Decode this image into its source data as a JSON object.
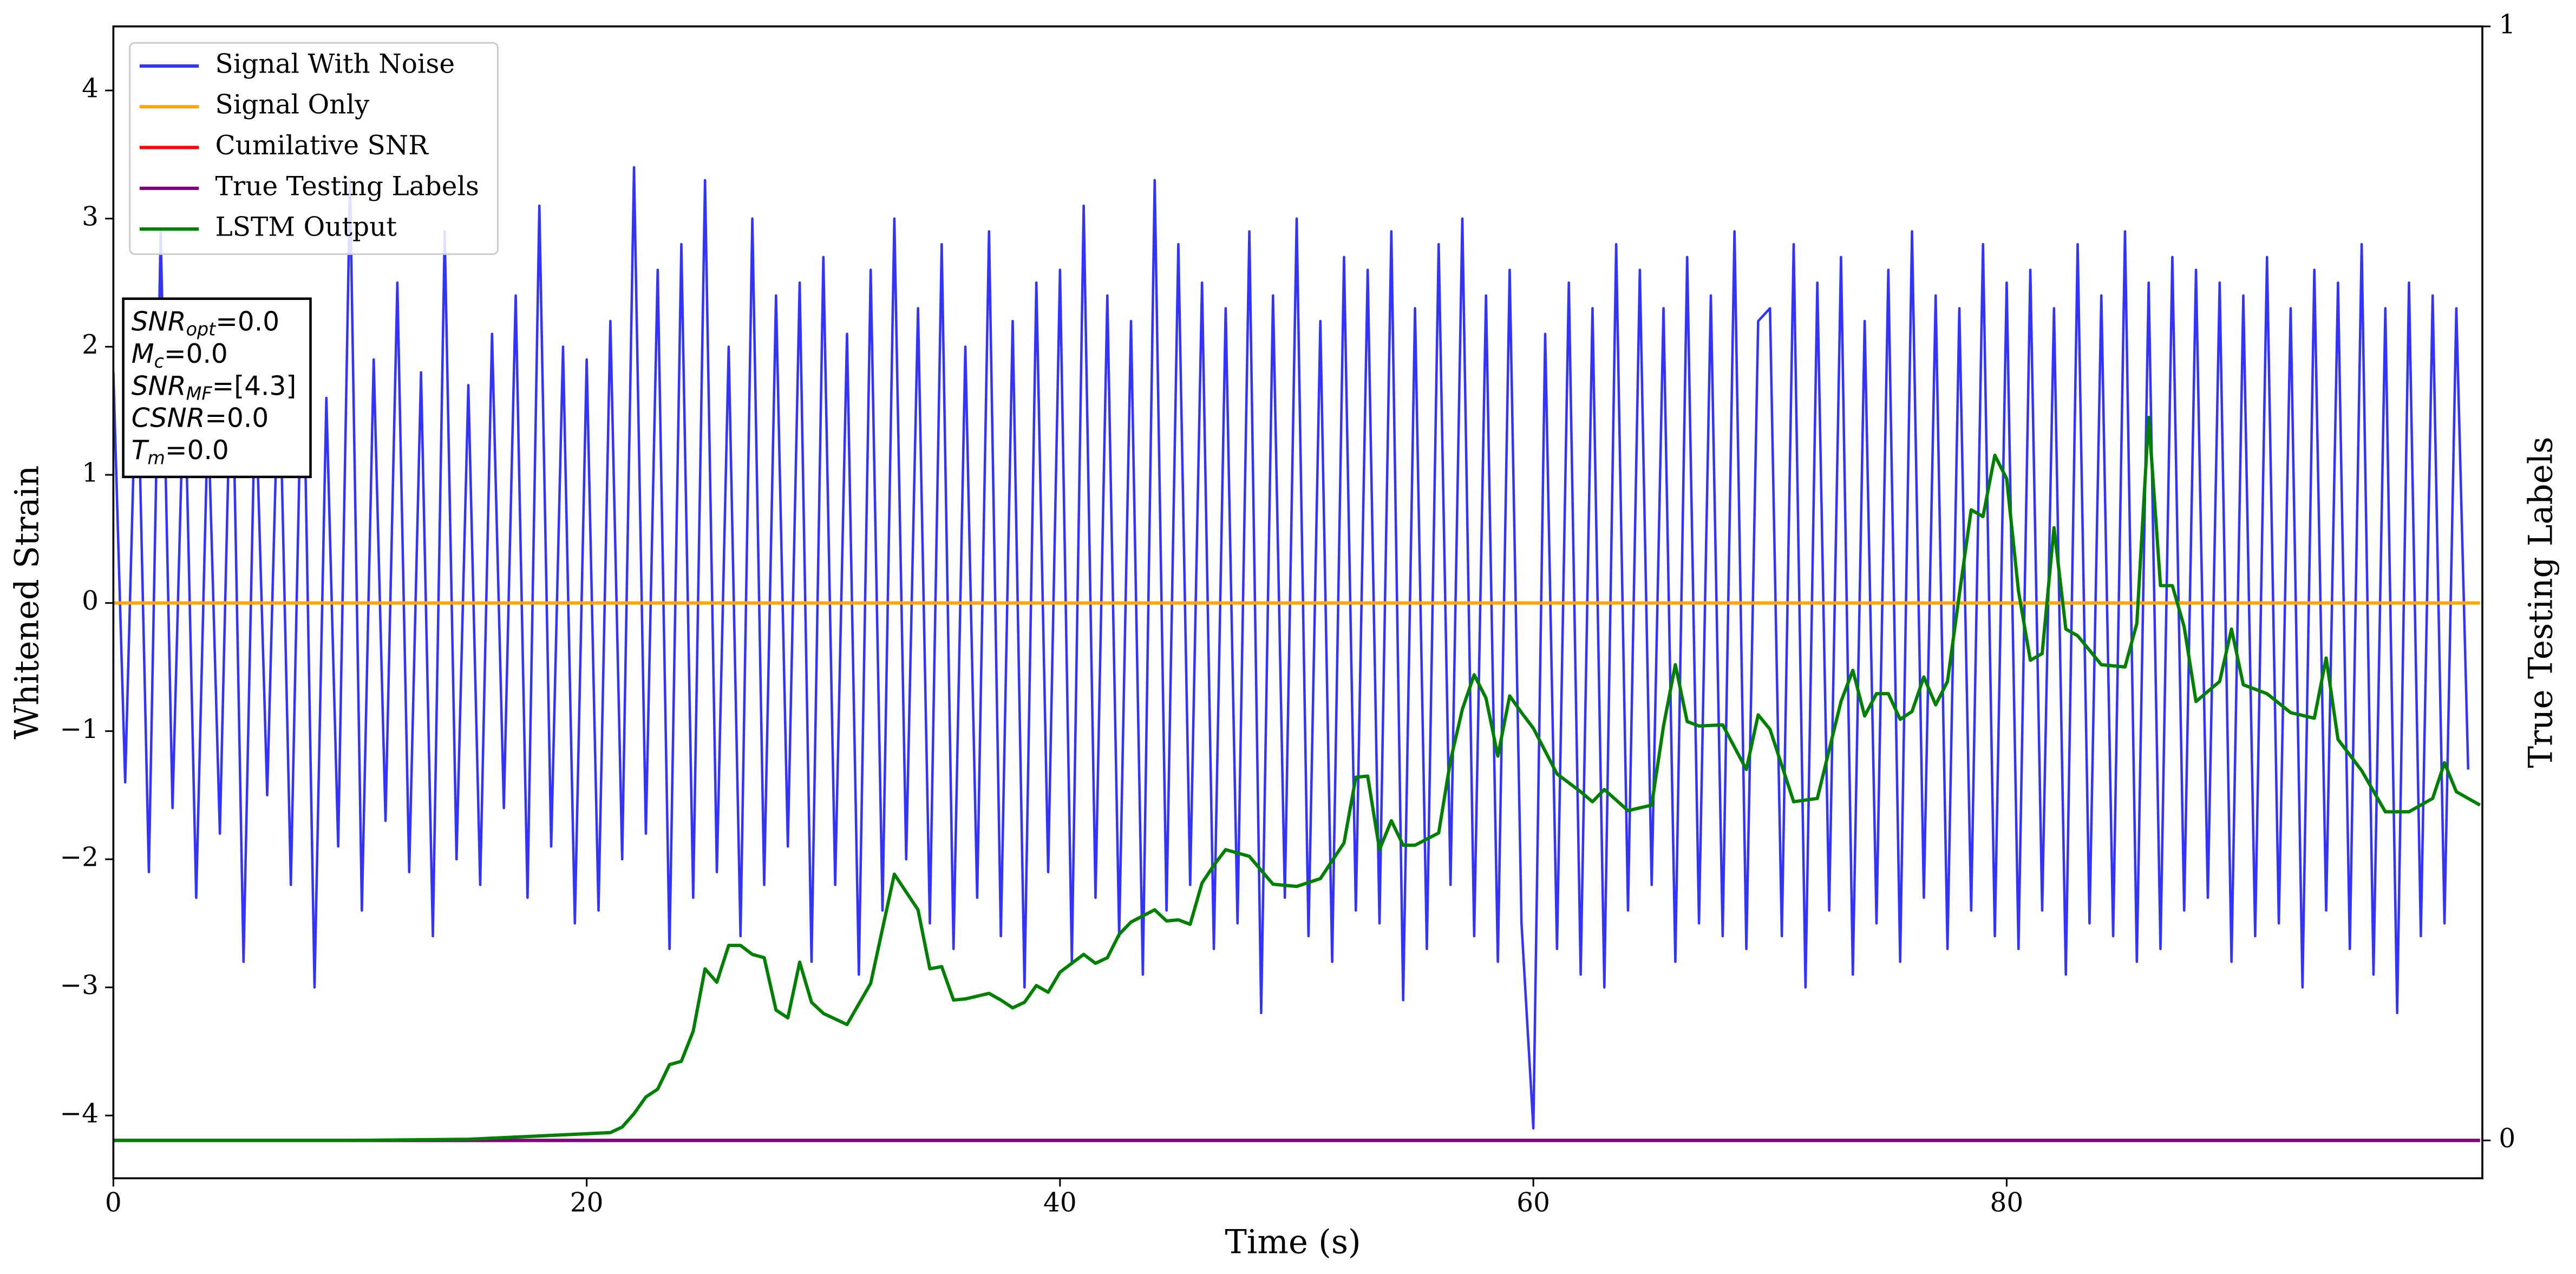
{
  "chart_data": {
    "type": "line",
    "xlabel": "Time (s)",
    "ylabel": "Whitened Strain",
    "y2label": "True Testing Labels",
    "xlim": [
      0,
      100.1
    ],
    "xticks": [
      0,
      20,
      40,
      60,
      80
    ],
    "ylim": [
      -4.49,
      4.5
    ],
    "yticks": [
      {
        "value": -4,
        "label": "−4"
      },
      {
        "value": -3,
        "label": "−3"
      },
      {
        "value": -2,
        "label": "−2"
      },
      {
        "value": -1,
        "label": "−1"
      },
      0,
      1,
      2,
      3,
      4
    ],
    "y2lim": [
      -0.034,
      1
    ],
    "y2ticks": [
      0,
      1
    ],
    "legend": "upper left",
    "annotation": [
      {
        "symbol": "SNR",
        "sub": "opt",
        "text": "=0.0"
      },
      {
        "symbol": "M",
        "sub": "c",
        "text": "=0.0"
      },
      {
        "symbol": "SNR",
        "sub": "MF",
        "text": "=[4.3]"
      },
      {
        "symbol": "CSNR",
        "sub": "",
        "text": "=0.0"
      },
      {
        "symbol": "T",
        "sub": "m",
        "text": "=0.0"
      }
    ],
    "series": [
      {
        "name": "Signal With Noise",
        "color": "#3333ff",
        "x": [
          0,
          0.5,
          1,
          1.5,
          2,
          2.5,
          3,
          3.5,
          4,
          4.5,
          5,
          5.5,
          6,
          6.5,
          7,
          7.5,
          8,
          8.5,
          9,
          9.5,
          10,
          10.5,
          11,
          11.5,
          12,
          12.5,
          13,
          13.5,
          14,
          14.5,
          15,
          15.5,
          16,
          16.5,
          17,
          17.5,
          18,
          18.5,
          19,
          19.5,
          20,
          20.5,
          21,
          21.5,
          22,
          22.5,
          23,
          23.5,
          24,
          24.5,
          25,
          25.5,
          26,
          26.5,
          27,
          27.5,
          28,
          28.5,
          29,
          29.5,
          30,
          30.5,
          31,
          31.5,
          32,
          32.5,
          33,
          33.5,
          34,
          34.5,
          35,
          35.5,
          36,
          36.5,
          37,
          37.5,
          38,
          38.5,
          39,
          39.5,
          40,
          40.5,
          41,
          41.5,
          42,
          42.5,
          43,
          43.5,
          44,
          44.5,
          45,
          45.5,
          46,
          46.5,
          47,
          47.5,
          48,
          48.5,
          49,
          49.5,
          50,
          50.5,
          51,
          51.5,
          52,
          52.5,
          53,
          53.5,
          54,
          54.5,
          55,
          55.5,
          56,
          56.5,
          57,
          57.5,
          58,
          58.5,
          59,
          59.5,
          60,
          60.5,
          61,
          61.5,
          62,
          62.5,
          63,
          63.5,
          64,
          64.5,
          65,
          65.5,
          66,
          66.5,
          67,
          67.5,
          68,
          68.5,
          69,
          69.5,
          70,
          70.5,
          71,
          71.5,
          72,
          72.5,
          73,
          73.5,
          74,
          74.5,
          75,
          75.5,
          76,
          76.5,
          77,
          77.5,
          78,
          78.5,
          79,
          79.5,
          80,
          80.5,
          81,
          81.5,
          82,
          82.5,
          83,
          83.5,
          84,
          84.5,
          85,
          85.5,
          86,
          86.5,
          87,
          87.5,
          88,
          88.5,
          89,
          89.5,
          90,
          90.5,
          91,
          91.5,
          92,
          92.5,
          93,
          93.5,
          94,
          94.5,
          95,
          95.5,
          96,
          96.5,
          97,
          97.5,
          98,
          98.5,
          99,
          99.5
        ],
        "values": [
          1.8,
          -1.4,
          2.1,
          -2.1,
          2.9,
          -1.6,
          1.9,
          -2.3,
          1.5,
          -1.8,
          2.2,
          -2.8,
          1.7,
          -1.5,
          2.0,
          -2.2,
          2.3,
          -3.0,
          1.6,
          -1.9,
          3.3,
          -2.4,
          1.9,
          -1.7,
          2.5,
          -2.1,
          1.8,
          -2.6,
          2.9,
          -2.0,
          1.7,
          -2.2,
          2.1,
          -1.6,
          2.4,
          -2.3,
          3.1,
          -1.9,
          2.0,
          -2.5,
          1.9,
          -2.4,
          2.2,
          -2.0,
          3.4,
          -1.8,
          2.6,
          -2.7,
          2.8,
          -2.3,
          3.3,
          -2.1,
          2.0,
          -2.6,
          3.0,
          -2.2,
          2.4,
          -1.9,
          2.5,
          -2.8,
          2.7,
          -2.2,
          2.1,
          -2.9,
          2.6,
          -2.4,
          3.0,
          -2.0,
          2.3,
          -2.5,
          2.8,
          -2.7,
          2.0,
          -2.3,
          2.9,
          -2.6,
          2.2,
          -3.0,
          2.5,
          -2.1,
          2.6,
          -2.8,
          3.1,
          -2.3,
          2.4,
          -2.6,
          2.2,
          -2.9,
          3.3,
          -2.4,
          2.8,
          -2.2,
          2.5,
          -2.7,
          2.3,
          -2.5,
          2.9,
          -3.2,
          2.4,
          -2.3,
          3.0,
          -2.6,
          2.2,
          -2.8,
          2.7,
          -2.4,
          2.6,
          -2.5,
          2.9,
          -3.1,
          2.3,
          -2.7,
          2.8,
          -2.2,
          3.0,
          -2.6,
          2.4,
          -2.8,
          2.6,
          -2.5,
          -4.1,
          2.1,
          -2.7,
          2.5,
          -2.9,
          2.3,
          -3.0,
          2.8,
          -2.4,
          2.6,
          -2.2,
          2.3,
          -2.8,
          2.7,
          -2.5,
          2.4,
          -2.6,
          2.9,
          -2.7,
          2.2,
          2.3,
          -2.6,
          2.8,
          -3.0,
          2.5,
          -2.4,
          2.7,
          -2.9,
          2.2,
          -2.5,
          2.6,
          -2.8,
          2.9,
          -2.3,
          2.4,
          -2.7,
          2.3,
          -2.4,
          2.8,
          -2.6,
          2.5,
          -2.7,
          2.6,
          -2.4,
          2.3,
          -2.9,
          2.8,
          -2.5,
          2.4,
          -2.6,
          2.9,
          -2.8,
          2.5,
          -2.7,
          2.7,
          -2.4,
          2.6,
          -2.3,
          2.5,
          -2.8,
          2.4,
          -2.6,
          2.7,
          -2.5,
          2.3,
          -3.0,
          2.6,
          -2.4,
          2.5,
          -2.7,
          2.8,
          -2.9,
          2.3,
          -3.2,
          2.5,
          -2.6,
          2.4,
          -2.5,
          2.3,
          -1.3
        ]
      },
      {
        "name": "Signal Only",
        "color": "#ffa500",
        "x": [
          0,
          100
        ],
        "values": [
          0,
          0
        ]
      },
      {
        "name": "Cumilative SNR",
        "color": "#ff0000",
        "axis": "y2",
        "x": [
          0,
          100
        ],
        "values": [
          0,
          0
        ]
      },
      {
        "name": "True Testing Labels",
        "color": "#800080",
        "axis": "y2",
        "x": [
          0,
          100
        ],
        "values": [
          0,
          0
        ]
      },
      {
        "name": "LSTM Output",
        "color": "#008000",
        "axis": "y2",
        "x": [
          0,
          10,
          15,
          18,
          20,
          21,
          21.5,
          22,
          22.5,
          23,
          23.5,
          24,
          24.5,
          25,
          25.5,
          26,
          26.5,
          27,
          27.5,
          28,
          28.5,
          29,
          29.5,
          30,
          31,
          32,
          33,
          34,
          34.5,
          35,
          35.5,
          36,
          37,
          37.5,
          38,
          38.5,
          39,
          39.5,
          40,
          41,
          41.5,
          42,
          42.5,
          43,
          44,
          44.5,
          45,
          45.5,
          46,
          46.5,
          47,
          48,
          49,
          50,
          51,
          52,
          52.5,
          53,
          53.5,
          54,
          54.5,
          55,
          56,
          56.5,
          57,
          57.5,
          58,
          58.5,
          59,
          59.5,
          60,
          61,
          62,
          62.5,
          63,
          64,
          65,
          65.5,
          66,
          66.5,
          67,
          68,
          69,
          69.5,
          70,
          71,
          72,
          73,
          73.5,
          74,
          74.5,
          75,
          75.5,
          76,
          76.5,
          77,
          77.5,
          78,
          78.5,
          79,
          79.5,
          80,
          80.5,
          81,
          81.5,
          82,
          82.5,
          83,
          84,
          85,
          85.5,
          86,
          86.5,
          87,
          87.5,
          88,
          89,
          89.5,
          90,
          91,
          92,
          93,
          93.5,
          94,
          95,
          96,
          97,
          98,
          98.5,
          99,
          100
        ],
        "values": [
          0,
          0,
          0.001,
          0.004,
          0.006,
          0.007,
          0.012,
          0.024,
          0.039,
          0.046,
          0.068,
          0.071,
          0.098,
          0.154,
          0.142,
          0.175,
          0.175,
          0.167,
          0.164,
          0.117,
          0.11,
          0.16,
          0.124,
          0.114,
          0.104,
          0.141,
          0.239,
          0.207,
          0.154,
          0.156,
          0.126,
          0.127,
          0.132,
          0.126,
          0.119,
          0.124,
          0.139,
          0.133,
          0.151,
          0.167,
          0.159,
          0.164,
          0.185,
          0.196,
          0.207,
          0.197,
          0.198,
          0.194,
          0.231,
          0.247,
          0.261,
          0.255,
          0.23,
          0.228,
          0.235,
          0.267,
          0.326,
          0.327,
          0.261,
          0.287,
          0.265,
          0.265,
          0.276,
          0.341,
          0.387,
          0.418,
          0.397,
          0.345,
          0.399,
          0.384,
          0.37,
          0.329,
          0.313,
          0.304,
          0.315,
          0.296,
          0.301,
          0.372,
          0.427,
          0.376,
          0.372,
          0.373,
          0.333,
          0.382,
          0.369,
          0.304,
          0.307,
          0.394,
          0.422,
          0.381,
          0.401,
          0.401,
          0.378,
          0.385,
          0.416,
          0.391,
          0.412,
          0.49,
          0.566,
          0.56,
          0.615,
          0.594,
          0.493,
          0.431,
          0.437,
          0.55,
          0.459,
          0.453,
          0.427,
          0.425,
          0.464,
          0.649,
          0.498,
          0.498,
          0.461,
          0.394,
          0.412,
          0.459,
          0.409,
          0.401,
          0.384,
          0.379,
          0.433,
          0.36,
          0.332,
          0.295,
          0.295,
          0.307,
          0.339,
          0.313,
          0.301
        ]
      }
    ]
  }
}
